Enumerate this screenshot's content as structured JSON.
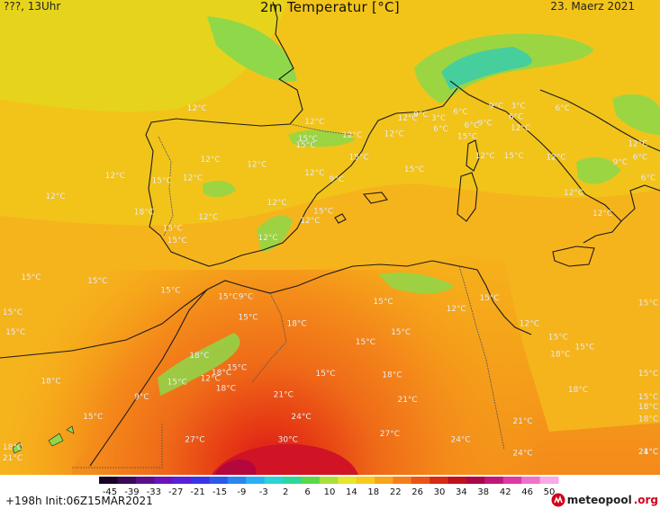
{
  "header": {
    "left_label": "???, 13Uhr",
    "title": "2m Temperatur [°C]",
    "date": "23. Maerz 2021"
  },
  "map": {
    "temperature_labels": [
      {
        "text": "12°C",
        "lon": -4.1,
        "lat": 47.2,
        "t": 12
      },
      {
        "text": "12°C",
        "lon": 1.2,
        "lat": 46.1,
        "t": 12
      },
      {
        "text": "12°C",
        "lon": 2.9,
        "lat": 45.0,
        "t": 12
      },
      {
        "text": "12°C",
        "lon": 5.4,
        "lat": 46.4,
        "t": 12
      },
      {
        "text": "9°C",
        "lon": 6.0,
        "lat": 46.7,
        "t": 9
      },
      {
        "text": "6°C",
        "lon": 7.8,
        "lat": 46.9,
        "t": 6
      },
      {
        "text": "9°C",
        "lon": 9.4,
        "lat": 47.4,
        "t": 9
      },
      {
        "text": "3°C",
        "lon": 10.4,
        "lat": 47.4,
        "t": 3
      },
      {
        "text": "6°C",
        "lon": 12.4,
        "lat": 47.2,
        "t": 6
      },
      {
        "text": "3°C",
        "lon": 6.8,
        "lat": 46.4,
        "t": 3
      },
      {
        "text": "6°C",
        "lon": 8.3,
        "lat": 45.8,
        "t": 6
      },
      {
        "text": "9°C",
        "lon": 8.9,
        "lat": 46.0,
        "t": 9
      },
      {
        "text": "6°C",
        "lon": 10.3,
        "lat": 46.5,
        "t": 6
      },
      {
        "text": "6°C",
        "lon": 6.9,
        "lat": 45.5,
        "t": 6
      },
      {
        "text": "12°C",
        "lon": 4.8,
        "lat": 45.1,
        "t": 12
      },
      {
        "text": "12°C",
        "lon": 10.5,
        "lat": 45.6,
        "t": 12
      },
      {
        "text": "15°C",
        "lon": 8.1,
        "lat": 44.9,
        "t": 15
      },
      {
        "text": "15°C",
        "lon": 0.9,
        "lat": 44.7,
        "t": 15
      },
      {
        "text": "15°C",
        "lon": 0.8,
        "lat": 44.2,
        "t": 15
      },
      {
        "text": "12°C",
        "lon": -3.5,
        "lat": 43.0,
        "t": 12
      },
      {
        "text": "12°C",
        "lon": -1.4,
        "lat": 42.6,
        "t": 12
      },
      {
        "text": "12°C",
        "lon": -7.8,
        "lat": 41.7,
        "t": 12
      },
      {
        "text": "15°C",
        "lon": -5.7,
        "lat": 41.3,
        "t": 15
      },
      {
        "text": "12°C",
        "lon": -4.3,
        "lat": 41.5,
        "t": 12
      },
      {
        "text": "12°C",
        "lon": 1.2,
        "lat": 41.9,
        "t": 12
      },
      {
        "text": "9°C",
        "lon": 2.2,
        "lat": 41.4,
        "t": 9
      },
      {
        "text": "15°C",
        "lon": 3.2,
        "lat": 43.2,
        "t": 15
      },
      {
        "text": "15°C",
        "lon": 5.7,
        "lat": 42.2,
        "t": 15
      },
      {
        "text": "15°C",
        "lon": 10.2,
        "lat": 43.3,
        "t": 15
      },
      {
        "text": "12°C",
        "lon": 8.9,
        "lat": 43.3,
        "t": 12
      },
      {
        "text": "12°C",
        "lon": 12.1,
        "lat": 43.2,
        "t": 12
      },
      {
        "text": "12°C",
        "lon": 15.8,
        "lat": 44.3,
        "t": 12
      },
      {
        "text": "6°C",
        "lon": 15.9,
        "lat": 43.2,
        "t": 6
      },
      {
        "text": "9°C",
        "lon": 15.0,
        "lat": 42.8,
        "t": 9
      },
      {
        "text": "6°C",
        "lon": 16.5,
        "lat": 41.5,
        "t": 6
      },
      {
        "text": "12°C",
        "lon": 12.9,
        "lat": 40.3,
        "t": 12
      },
      {
        "text": "12°C",
        "lon": 14.2,
        "lat": 38.6,
        "t": 12
      },
      {
        "text": "12°C",
        "lon": -0.5,
        "lat": 39.5,
        "t": 12
      },
      {
        "text": "15°C",
        "lon": 1.6,
        "lat": 38.8,
        "t": 15
      },
      {
        "text": "12°C",
        "lon": 1.0,
        "lat": 38.0,
        "t": 12
      },
      {
        "text": "12°C",
        "lon": -3.6,
        "lat": 38.3,
        "t": 12
      },
      {
        "text": "18°C",
        "lon": -6.5,
        "lat": 38.7,
        "t": 18
      },
      {
        "text": "15°C",
        "lon": -5.2,
        "lat": 37.4,
        "t": 15
      },
      {
        "text": "15°C",
        "lon": -5.0,
        "lat": 36.4,
        "t": 15
      },
      {
        "text": "12°C",
        "lon": -0.9,
        "lat": 36.6,
        "t": 12
      },
      {
        "text": "12°C",
        "lon": -10.5,
        "lat": 40.0,
        "t": 12
      },
      {
        "text": "15°C",
        "lon": -11.6,
        "lat": 33.4,
        "t": 15
      },
      {
        "text": "15°C",
        "lon": -8.6,
        "lat": 33.1,
        "t": 15
      },
      {
        "text": "15°C",
        "lon": -14.2,
        "lat": 30.5,
        "t": 15
      },
      {
        "text": "15°C",
        "lon": -12.3,
        "lat": 28.9,
        "t": 15
      },
      {
        "text": "15°C",
        "lon": -5.3,
        "lat": 32.3,
        "t": 15
      },
      {
        "text": "15°C",
        "lon": -2.7,
        "lat": 31.8,
        "t": 15
      },
      {
        "text": "9°C",
        "lon": -1.9,
        "lat": 31.8,
        "t": 9
      },
      {
        "text": "15°C",
        "lon": -1.8,
        "lat": 30.1,
        "t": 15
      },
      {
        "text": "18°C",
        "lon": 0.4,
        "lat": 29.6,
        "t": 18
      },
      {
        "text": "15°C",
        "lon": 4.3,
        "lat": 31.4,
        "t": 15
      },
      {
        "text": "12°C",
        "lon": 7.6,
        "lat": 30.8,
        "t": 12
      },
      {
        "text": "15°C",
        "lon": 9.1,
        "lat": 31.7,
        "t": 15
      },
      {
        "text": "12°C",
        "lon": 10.9,
        "lat": 29.6,
        "t": 12
      },
      {
        "text": "15°C",
        "lon": 5.1,
        "lat": 28.9,
        "t": 15
      },
      {
        "text": "15°C",
        "lon": 3.5,
        "lat": 28.1,
        "t": 15
      },
      {
        "text": "15°C",
        "lon": 12.2,
        "lat": 28.5,
        "t": 15
      },
      {
        "text": "15°C",
        "lon": 13.4,
        "lat": 27.7,
        "t": 15
      },
      {
        "text": "18°C",
        "lon": 12.3,
        "lat": 27.1,
        "t": 18
      },
      {
        "text": "15°C",
        "lon": 16.5,
        "lat": 31.3,
        "t": 15
      },
      {
        "text": "15°C",
        "lon": 17.0,
        "lat": 25.5,
        "t": 15
      },
      {
        "text": "18°C",
        "lon": -4.0,
        "lat": 27.0,
        "t": 18
      },
      {
        "text": "15°C",
        "lon": -2.3,
        "lat": 26.0,
        "t": 15
      },
      {
        "text": "18°C",
        "lon": -3.0,
        "lat": 25.6,
        "t": 18
      },
      {
        "text": "12°C",
        "lon": -3.5,
        "lat": 25.1,
        "t": 12
      },
      {
        "text": "15°C",
        "lon": -5.0,
        "lat": 24.8,
        "t": 15
      },
      {
        "text": "18°C",
        "lon": -2.8,
        "lat": 24.3,
        "t": 18
      },
      {
        "text": "9°C",
        "lon": -6.6,
        "lat": 23.6,
        "t": 9
      },
      {
        "text": "15°C",
        "lon": -8.8,
        "lat": 22.0,
        "t": 15
      },
      {
        "text": "18°C",
        "lon": -10.7,
        "lat": 24.9,
        "t": 18
      },
      {
        "text": "15°C",
        "lon": 1.7,
        "lat": 25.5,
        "t": 15
      },
      {
        "text": "18°C",
        "lon": 4.7,
        "lat": 25.4,
        "t": 18
      },
      {
        "text": "21°C",
        "lon": -0.2,
        "lat": 23.8,
        "t": 21
      },
      {
        "text": "21°C",
        "lon": 5.4,
        "lat": 23.4,
        "t": 21
      },
      {
        "text": "24°C",
        "lon": 0.6,
        "lat": 22.0,
        "t": 24
      },
      {
        "text": "21°C",
        "lon": 10.6,
        "lat": 21.6,
        "t": 21
      },
      {
        "text": "18°C",
        "lon": 13.1,
        "lat": 24.2,
        "t": 18
      },
      {
        "text": "15°C",
        "lon": 16.3,
        "lat": 23.6,
        "t": 15
      },
      {
        "text": "18°C",
        "lon": 16.8,
        "lat": 22.8,
        "t": 18
      },
      {
        "text": "18°C",
        "lon": 19.1,
        "lat": 21.8,
        "t": 18
      },
      {
        "text": "27°C",
        "lon": -4.2,
        "lat": 20.1,
        "t": 27
      },
      {
        "text": "30°C",
        "lon": 0.0,
        "lat": 20.1,
        "t": 30
      },
      {
        "text": "27°C",
        "lon": 4.6,
        "lat": 20.6,
        "t": 27
      },
      {
        "text": "24°C",
        "lon": 7.8,
        "lat": 20.1,
        "t": 24
      },
      {
        "text": "24°C",
        "lon": 10.6,
        "lat": 19.0,
        "t": 24
      },
      {
        "text": "24°C",
        "lon": 16.9,
        "lat": 19.1,
        "t": 24
      },
      {
        "text": "21°C",
        "lon": 18.8,
        "lat": 19.1,
        "t": 21
      },
      {
        "text": "18°C",
        "lon": -13.8,
        "lat": 19.5,
        "t": 18
      },
      {
        "text": "21°C",
        "lon": -12.8,
        "lat": 18.6,
        "t": 21
      }
    ]
  },
  "legend": {
    "ticks": [
      "-45",
      "-39",
      "-33",
      "-27",
      "-21",
      "-15",
      "-9",
      "-3",
      "2",
      "6",
      "10",
      "14",
      "18",
      "22",
      "26",
      "30",
      "34",
      "38",
      "42",
      "46",
      "50"
    ],
    "colors": [
      "#1a0426",
      "#3a0a55",
      "#5a0f8a",
      "#6a14b8",
      "#5a20d8",
      "#3a34e6",
      "#2a5ae8",
      "#2a86ec",
      "#2ab0f0",
      "#2ad4d4",
      "#2ad89a",
      "#5ad84a",
      "#a6e03a",
      "#e6e62a",
      "#f6cc1a",
      "#f6a61a",
      "#f67e1a",
      "#ea5516",
      "#d82a14",
      "#c0101e",
      "#a8084a",
      "#c0187a",
      "#dc3aa8",
      "#ee72cc",
      "#f8aae6"
    ]
  },
  "footer": {
    "run_info": "+198h Init:06Z15MAR2021",
    "brand": "meteopool",
    "brand_suffix": ".org"
  }
}
